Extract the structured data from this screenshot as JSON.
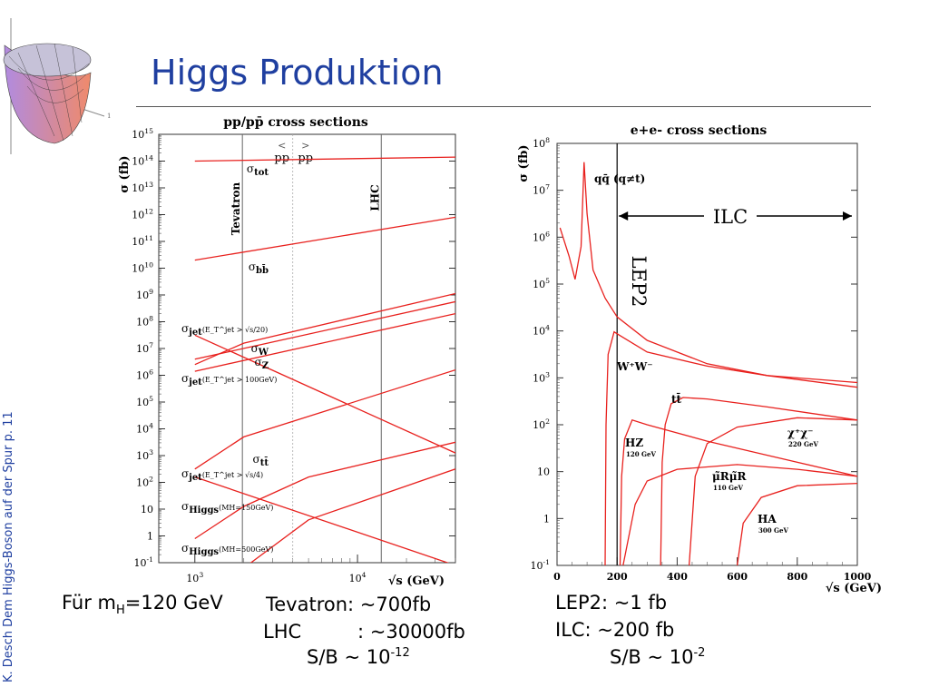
{
  "slide": {
    "title": "Higgs Produktion",
    "side_text": "K. Desch Dem Higgs-Boson auf der Spur p. 11"
  },
  "captions": {
    "mh_prefix": "Für m",
    "mh_sub": "H",
    "mh_suffix": "=120 GeV",
    "tevatron": "Tevatron: ~700fb",
    "lhc_a": "LHC",
    "lhc_b": ": ~30000fb",
    "sb_left_prefix": "S/B ~ 10",
    "sb_left_exp": "-12",
    "lep2": "LEP2: ~1 fb",
    "ilc": "ILC:  ~200 fb",
    "sb_right_prefix": "S/B ~ 10",
    "sb_right_exp": "-2"
  },
  "chart_data": [
    {
      "type": "line",
      "title": "pp/pp̄ cross sections",
      "xlabel": "√s (GeV)",
      "ylabel": "σ (fb)",
      "x_scale": "log",
      "y_scale": "log",
      "xlim": [
        600,
        40000
      ],
      "ylim": [
        -1,
        15
      ],
      "y_ticks": [
        {
          "base": "10",
          "exp": "15"
        },
        {
          "base": "10",
          "exp": "14"
        },
        {
          "base": "10",
          "exp": "13"
        },
        {
          "base": "10",
          "exp": "12"
        },
        {
          "base": "10",
          "exp": "11"
        },
        {
          "base": "10",
          "exp": "10"
        },
        {
          "base": "10",
          "exp": "9"
        },
        {
          "base": "10",
          "exp": "8"
        },
        {
          "base": "10",
          "exp": "7"
        },
        {
          "base": "10",
          "exp": "6"
        },
        {
          "base": "10",
          "exp": "5"
        },
        {
          "base": "10",
          "exp": "4"
        },
        {
          "base": "10",
          "exp": "3"
        },
        {
          "base": "10",
          "exp": "2"
        },
        {
          "base": "10",
          "exp": ""
        },
        {
          "base": "1",
          "exp": ""
        },
        {
          "base": "10",
          "exp": "-1"
        }
      ],
      "x_ticks": [
        {
          "base": "10",
          "exp": "3"
        },
        {
          "base": "10",
          "exp": "4"
        }
      ],
      "annotations": {
        "pp_bar": "pp",
        "pp": "pp",
        "tevatron": "Tevatron",
        "lhc": "LHC"
      },
      "vlines_gev": {
        "tevatron": 1960,
        "pp_switch": 4000,
        "lhc": 14000
      },
      "series_color": "#e8211e",
      "series": [
        {
          "name": "σtot",
          "label_base": "σ",
          "label_sub": "tot",
          "points": [
            [
              1000,
              14.0
            ],
            [
              40000,
              14.15
            ]
          ]
        },
        {
          "name": "σbb̄",
          "label_base": "σ",
          "label_sub": "bb̄",
          "points": [
            [
              1000,
              10.3
            ],
            [
              40000,
              11.9
            ]
          ]
        },
        {
          "name": "σjet(E_T^jet > √s/20)",
          "label_base": "σ",
          "label_sub": "jet",
          "label_extra": "(E_T^jet > √s/20)",
          "points": [
            [
              1000,
              7.5
            ],
            [
              40000,
              3.1
            ]
          ]
        },
        {
          "name": "σW",
          "label_base": "σ",
          "label_sub": "W",
          "points": [
            [
              1000,
              6.6
            ],
            [
              40000,
              8.75
            ]
          ]
        },
        {
          "name": "σZ",
          "label_base": "σ",
          "label_sub": "Z",
          "points": [
            [
              1000,
              6.15
            ],
            [
              40000,
              8.3
            ]
          ]
        },
        {
          "name": "σjet(E_T^jet > 100GeV)",
          "label_base": "σ",
          "label_sub": "jet",
          "label_extra": "(E_T^jet > 100GeV)",
          "points": [
            [
              1000,
              6.4
            ],
            [
              2000,
              7.2
            ],
            [
              40000,
              9.05
            ]
          ]
        },
        {
          "name": "σtt̄",
          "label_base": "σ",
          "label_sub": "tt̄",
          "points": [
            [
              1000,
              2.5
            ],
            [
              2000,
              3.7
            ],
            [
              40000,
              6.2
            ]
          ]
        },
        {
          "name": "σjet(E_T^jet > √s/4)",
          "label_base": "σ",
          "label_sub": "jet",
          "label_extra": "(E_T^jet > √s/4)",
          "points": [
            [
              1000,
              2.2
            ],
            [
              40000,
              -1.1
            ]
          ]
        },
        {
          "name": "σHiggs(MH=150GeV)",
          "label_base": "σ",
          "label_sub": "Higgs",
          "label_extra": "(MH=150GeV)",
          "points": [
            [
              1000,
              -0.1
            ],
            [
              2000,
              1.1
            ],
            [
              5000,
              2.2
            ],
            [
              40000,
              3.5
            ]
          ]
        },
        {
          "name": "σHiggs(MH=500GeV)",
          "label_base": "σ",
          "label_sub": "Higgs",
          "label_extra": "(MH=500GeV)",
          "points": [
            [
              1000,
              -3.5
            ],
            [
              2000,
              -1.2
            ],
            [
              5000,
              0.6
            ],
            [
              40000,
              2.5
            ]
          ]
        }
      ]
    },
    {
      "type": "line",
      "title": "e+e- cross sections",
      "xlabel": "√s (GeV)",
      "ylabel": "σ (fb)",
      "x_scale": "linear",
      "y_scale": "log",
      "xlim": [
        0,
        1000
      ],
      "ylim": [
        -1,
        8
      ],
      "y_ticks": [
        {
          "base": "10",
          "exp": "8"
        },
        {
          "base": "10",
          "exp": "7"
        },
        {
          "base": "10",
          "exp": "6"
        },
        {
          "base": "10",
          "exp": "5"
        },
        {
          "base": "10",
          "exp": "4"
        },
        {
          "base": "10",
          "exp": "3"
        },
        {
          "base": "10",
          "exp": "2"
        },
        {
          "base": "10",
          "exp": ""
        },
        {
          "base": "1",
          "exp": ""
        },
        {
          "base": "10",
          "exp": "-1"
        }
      ],
      "x_ticks": [
        "0",
        "200",
        "400",
        "600",
        "800",
        "1000"
      ],
      "annotations": {
        "ilc": "ILC",
        "lep2": "LEP2"
      },
      "lep2_line_gev": 200,
      "ilc_range_gev": [
        200,
        1000
      ],
      "series_color": "#e8211e",
      "series": [
        {
          "name": "qq̄ (q≠t)",
          "label": "qq̄ (q≠t)",
          "points": [
            [
              10,
              6.2
            ],
            [
              40,
              5.6
            ],
            [
              60,
              5.1
            ],
            [
              80,
              5.8
            ],
            [
              90,
              7.6
            ],
            [
              100,
              6.5
            ],
            [
              120,
              5.3
            ],
            [
              160,
              4.7
            ],
            [
              200,
              4.3
            ],
            [
              300,
              3.8
            ],
            [
              500,
              3.3
            ],
            [
              700,
              3.05
            ],
            [
              1000,
              2.8
            ]
          ]
        },
        {
          "name": "W+W-",
          "label": "W⁺W⁻",
          "points": [
            [
              160,
              -1
            ],
            [
              163,
              2.0
            ],
            [
              170,
              3.5
            ],
            [
              190,
              3.98
            ],
            [
              210,
              3.9
            ],
            [
              300,
              3.55
            ],
            [
              500,
              3.25
            ],
            [
              700,
              3.05
            ],
            [
              1000,
              2.9
            ]
          ]
        },
        {
          "name": "tt̄",
          "label": "tt̄",
          "points": [
            [
              345,
              -1
            ],
            [
              350,
              1.2
            ],
            [
              360,
              2.0
            ],
            [
              380,
              2.45
            ],
            [
              420,
              2.58
            ],
            [
              500,
              2.55
            ],
            [
              700,
              2.38
            ],
            [
              1000,
              2.1
            ]
          ]
        },
        {
          "name": "HZ",
          "label": "HZ",
          "sublabel": "120 GeV",
          "points": [
            [
              210,
              -1
            ],
            [
              215,
              0.9
            ],
            [
              225,
              1.7
            ],
            [
              250,
              2.1
            ],
            [
              300,
              2.0
            ],
            [
              500,
              1.65
            ],
            [
              700,
              1.35
            ],
            [
              1000,
              0.9
            ]
          ]
        },
        {
          "name": "χ+χ-",
          "label": "χ⁺χ⁻",
          "sublabel": "220 GeV",
          "points": [
            [
              440,
              -1
            ],
            [
              460,
              0.9
            ],
            [
              500,
              1.6
            ],
            [
              600,
              1.95
            ],
            [
              800,
              2.15
            ],
            [
              1000,
              2.1
            ]
          ]
        },
        {
          "name": "μ̃Rμ̃R",
          "label": "μ̃Rμ̃R",
          "sublabel": "110 GeV",
          "points": [
            [
              220,
              -1
            ],
            [
              260,
              0.3
            ],
            [
              300,
              0.8
            ],
            [
              400,
              1.05
            ],
            [
              600,
              1.15
            ],
            [
              800,
              1.05
            ],
            [
              1000,
              0.9
            ]
          ]
        },
        {
          "name": "HA",
          "label": "HA",
          "sublabel": "300 GeV",
          "points": [
            [
              600,
              -1
            ],
            [
              620,
              -0.1
            ],
            [
              680,
              0.45
            ],
            [
              800,
              0.7
            ],
            [
              1000,
              0.75
            ]
          ]
        }
      ]
    }
  ]
}
